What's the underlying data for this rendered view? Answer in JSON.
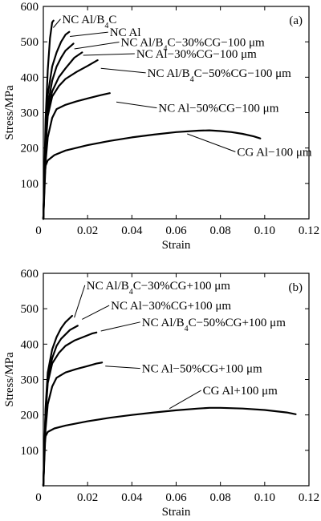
{
  "chart_data": [
    {
      "type": "line",
      "panel_label": "(a)",
      "xlabel": "Strain",
      "ylabel": "Stress/MPa",
      "xlim": [
        0,
        0.12
      ],
      "ylim": [
        0,
        600
      ],
      "x_ticks": [
        "0",
        "0.02",
        "0.04",
        "0.06",
        "0.08",
        "0.10",
        "0.12"
      ],
      "y_ticks": [
        "0",
        "100",
        "200",
        "300",
        "400",
        "500",
        "600"
      ],
      "grid": false,
      "legend": "none",
      "series": [
        {
          "name": "NC Al/B₄C",
          "x": [
            0,
            0.001,
            0.002,
            0.003,
            0.004,
            0.0046
          ],
          "y": [
            0,
            280,
            420,
            510,
            555,
            560
          ],
          "label_at": [
            0.0085,
            553
          ],
          "leader_to": [
            0.0045,
            540
          ]
        },
        {
          "name": "NC Al",
          "x": [
            0,
            0.001,
            0.002,
            0.004,
            0.006,
            0.008,
            0.01,
            0.0117
          ],
          "y": [
            0,
            240,
            350,
            430,
            470,
            500,
            520,
            528
          ],
          "label_at": [
            0.03,
            516
          ],
          "leader_to": [
            0.012,
            515
          ]
        },
        {
          "name": "NC Al/B₄C−30%CG−100 μm",
          "x": [
            0,
            0.001,
            0.002,
            0.004,
            0.006,
            0.008,
            0.01,
            0.0136
          ],
          "y": [
            0,
            220,
            320,
            390,
            430,
            455,
            475,
            495
          ],
          "label_at": [
            0.035,
            488
          ],
          "leader_to": [
            0.014,
            480
          ]
        },
        {
          "name": "NC Al−30%CG−100 μm",
          "x": [
            0,
            0.001,
            0.002,
            0.004,
            0.007,
            0.01,
            0.014,
            0.0175
          ],
          "y": [
            0,
            210,
            300,
            360,
            400,
            425,
            455,
            470
          ],
          "label_at": [
            0.042,
            455
          ],
          "leader_to": [
            0.018,
            462
          ]
        },
        {
          "name": "NC Al/B₄C−50%CG−100 μm",
          "x": [
            0,
            0.001,
            0.002,
            0.004,
            0.007,
            0.01,
            0.015,
            0.02,
            0.0245
          ],
          "y": [
            0,
            200,
            290,
            345,
            375,
            395,
            415,
            432,
            448
          ],
          "label_at": [
            0.047,
            401
          ],
          "leader_to": [
            0.026,
            425
          ]
        },
        {
          "name": "NC Al−50%CG−100 μm",
          "x": [
            0,
            0.001,
            0.002,
            0.004,
            0.006,
            0.01,
            0.015,
            0.02,
            0.025,
            0.03
          ],
          "y": [
            0,
            160,
            230,
            285,
            310,
            322,
            332,
            340,
            348,
            355
          ],
          "label_at": [
            0.052,
            302
          ],
          "leader_to": [
            0.033,
            330
          ]
        },
        {
          "name": "CG Al−100 μm",
          "x": [
            0,
            0.0005,
            0.001,
            0.002,
            0.005,
            0.01,
            0.02,
            0.03,
            0.04,
            0.05,
            0.06,
            0.07,
            0.075,
            0.08,
            0.085,
            0.09,
            0.095,
            0.098
          ],
          "y": [
            0,
            110,
            150,
            165,
            180,
            193,
            208,
            220,
            230,
            238,
            245,
            249,
            250,
            248,
            245,
            240,
            233,
            227
          ],
          "label_at": [
            0.0875,
            178
          ],
          "leader_to": [
            0.065,
            240
          ]
        }
      ]
    },
    {
      "type": "line",
      "panel_label": "(b)",
      "xlabel": "Strain",
      "ylabel": "Stress/MPa",
      "xlim": [
        0,
        0.12
      ],
      "ylim": [
        0,
        600
      ],
      "x_ticks": [
        "0",
        "0.02",
        "0.04",
        "0.06",
        "0.08",
        "0.10",
        "0.12"
      ],
      "y_ticks": [
        "0",
        "100",
        "200",
        "300",
        "400",
        "500",
        "600"
      ],
      "grid": false,
      "legend": "none",
      "series": [
        {
          "name": "NC Al/B₄C−30%CG+100 μm",
          "x": [
            0,
            0.001,
            0.002,
            0.004,
            0.006,
            0.008,
            0.01,
            0.013
          ],
          "y": [
            0,
            220,
            320,
            385,
            420,
            445,
            462,
            480
          ],
          "label_at": [
            0.0195,
            555
          ],
          "leader_to": [
            0.014,
            475
          ]
        },
        {
          "name": "NC Al−30%CG+100 μm",
          "x": [
            0,
            0.001,
            0.002,
            0.004,
            0.006,
            0.008,
            0.012,
            0.0155
          ],
          "y": [
            0,
            210,
            300,
            360,
            395,
            415,
            440,
            452
          ],
          "label_at": [
            0.0305,
            498
          ],
          "leader_to": [
            0.0175,
            470
          ]
        },
        {
          "name": "NC Al/B₄C−50%CG+100 μm",
          "x": [
            0,
            0.001,
            0.002,
            0.004,
            0.007,
            0.01,
            0.014,
            0.018,
            0.022,
            0.024
          ],
          "y": [
            0,
            200,
            290,
            345,
            375,
            395,
            410,
            420,
            430,
            433
          ],
          "label_at": [
            0.0445,
            451
          ],
          "leader_to": [
            0.026,
            437
          ]
        },
        {
          "name": "NC Al−50%CG+100 μm",
          "x": [
            0,
            0.001,
            0.002,
            0.004,
            0.006,
            0.01,
            0.015,
            0.02,
            0.024,
            0.0265
          ],
          "y": [
            0,
            160,
            230,
            280,
            305,
            320,
            330,
            338,
            345,
            348
          ],
          "label_at": [
            0.0445,
            320
          ],
          "leader_to": [
            0.028,
            338
          ]
        },
        {
          "name": "CG Al+100 μm",
          "x": [
            0,
            0.0005,
            0.001,
            0.002,
            0.005,
            0.01,
            0.02,
            0.03,
            0.04,
            0.05,
            0.06,
            0.07,
            0.075,
            0.08,
            0.09,
            0.1,
            0.11,
            0.114
          ],
          "y": [
            0,
            110,
            140,
            152,
            162,
            170,
            182,
            192,
            200,
            207,
            213,
            218,
            220,
            220,
            218,
            214,
            207,
            202
          ],
          "label_at": [
            0.072,
            258
          ],
          "leader_to": [
            0.057,
            218
          ]
        }
      ]
    }
  ]
}
